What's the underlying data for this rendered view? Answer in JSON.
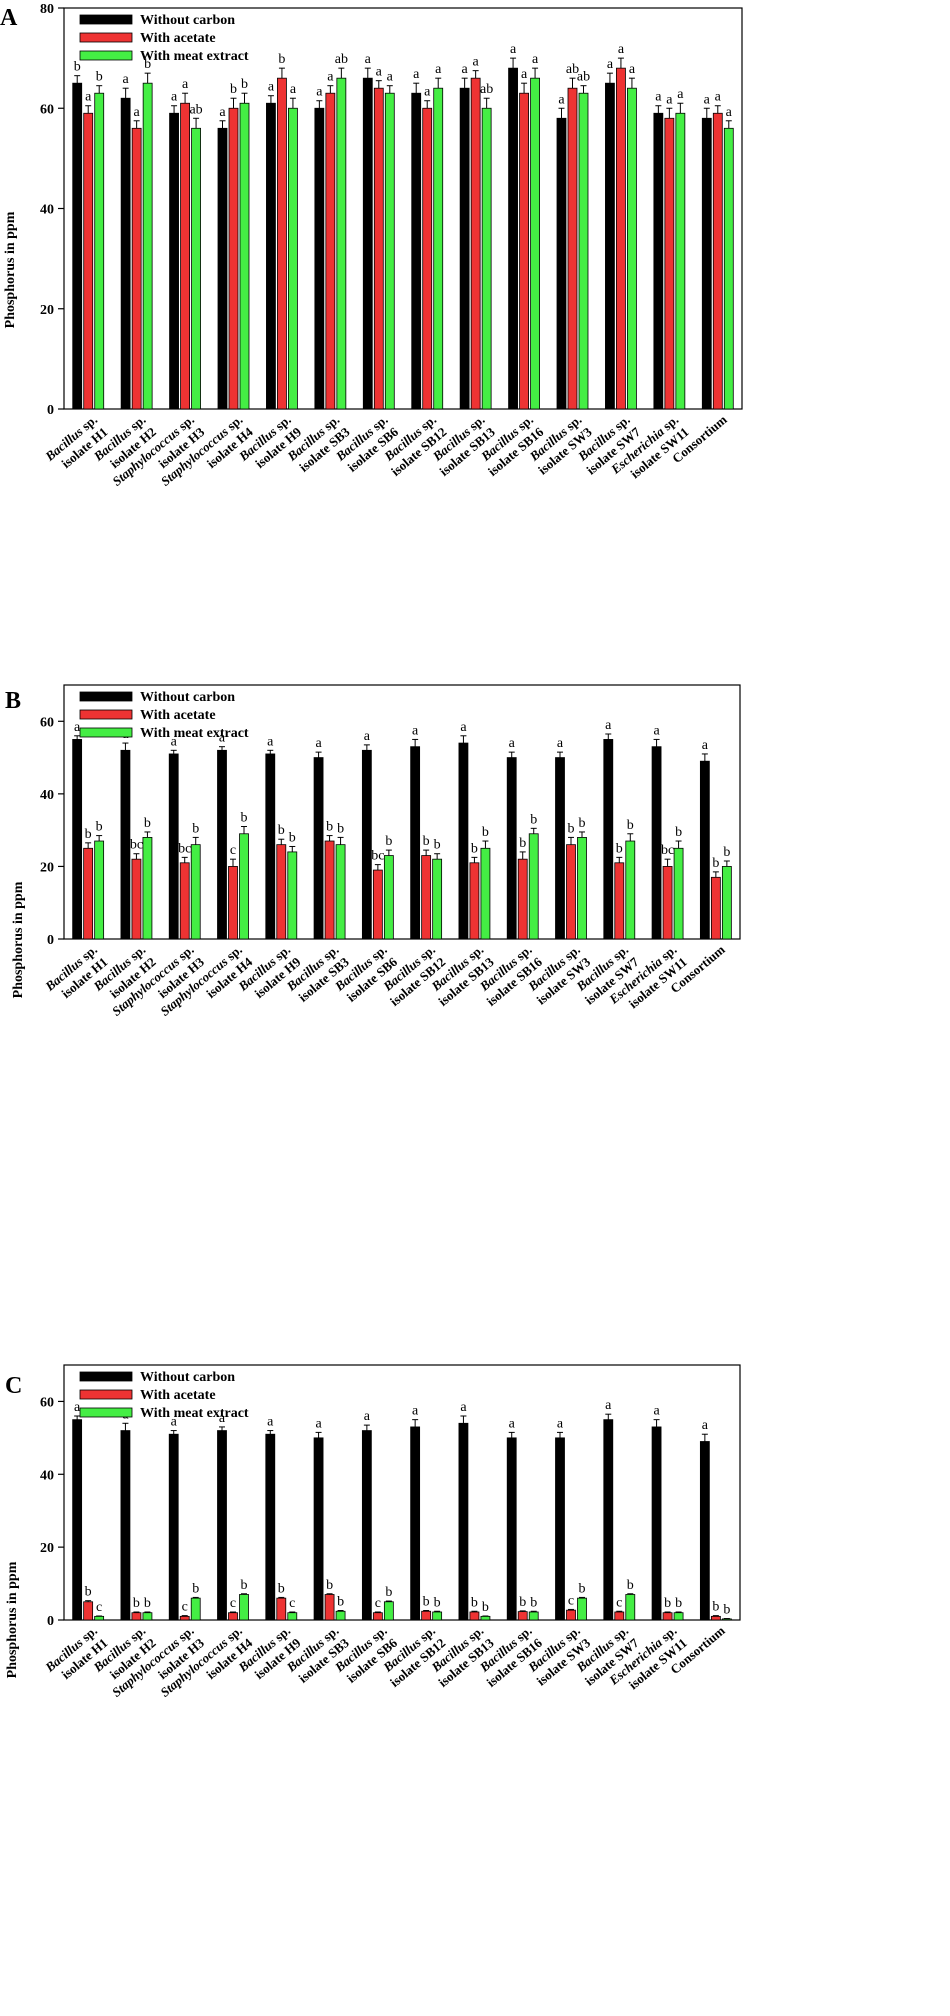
{
  "figure": {
    "panels": [
      "A",
      "B",
      "C"
    ]
  },
  "colors": {
    "without_carbon": "#000000",
    "with_acetate": "#ee3333",
    "with_meat_extract": "#44ee44"
  },
  "chart_data": [
    {
      "panel": "A",
      "type": "bar",
      "ylabel": "Phosphorus in ppm",
      "ylim": [
        0,
        80
      ],
      "yticks": [
        0,
        20,
        40,
        60,
        80
      ],
      "legend_position": "top-left",
      "categories": [
        {
          "genus": "Bacillus",
          "suffix": " sp.",
          "line2": "isolate H1"
        },
        {
          "genus": "Bacillus",
          "suffix": " sp.",
          "line2": "isolate H2"
        },
        {
          "genus": "Staphylococcus",
          "suffix": " sp.",
          "line2": "isolate H3"
        },
        {
          "genus": "Staphylococcus",
          "suffix": " sp.",
          "line2": "isolate H4"
        },
        {
          "genus": "Bacillus",
          "suffix": " sp.",
          "line2": "isolate H9"
        },
        {
          "genus": "Bacillus",
          "suffix": " sp.",
          "line2": "isolate SB3"
        },
        {
          "genus": "Bacillus",
          "suffix": " sp.",
          "line2": "isolate SB6"
        },
        {
          "genus": "Bacillus",
          "suffix": " sp.",
          "line2": "isolate SB12"
        },
        {
          "genus": "Bacillus",
          "suffix": " sp.",
          "line2": "isolate SB13"
        },
        {
          "genus": "Bacillus",
          "suffix": " sp.",
          "line2": "isolate SB16"
        },
        {
          "genus": "Bacillus",
          "suffix": " sp.",
          "line2": "isolate SW3"
        },
        {
          "genus": "Bacillus",
          "suffix": " sp.",
          "line2": "isolate SW7"
        },
        {
          "genus": "Escherichia",
          "suffix": " sp.",
          "line2": "isolate SW11"
        },
        {
          "genus": "",
          "suffix": "Consortium",
          "line2": ""
        }
      ],
      "series": [
        {
          "name": "Without carbon",
          "color": "#000000",
          "values": [
            65,
            62,
            59,
            56,
            61,
            60,
            66,
            63,
            64,
            68,
            58,
            65,
            59,
            58
          ],
          "errors": [
            1.5,
            2,
            1.5,
            1.5,
            1.5,
            1.5,
            2,
            2,
            2,
            2,
            2,
            2,
            1.5,
            2
          ],
          "letters": [
            "b",
            "a",
            "a",
            "a",
            "a",
            "a",
            "a",
            "a",
            "a",
            "a",
            "a",
            "a",
            "a",
            "a"
          ]
        },
        {
          "name": "With acetate",
          "color": "#ee3333",
          "values": [
            59,
            56,
            61,
            60,
            66,
            63,
            64,
            60,
            66,
            63,
            64,
            68,
            58,
            59
          ],
          "errors": [
            1.5,
            1.5,
            2,
            2,
            2,
            1.5,
            1.5,
            1.5,
            1.5,
            2,
            2,
            2,
            2,
            1.5
          ],
          "letters": [
            "a",
            "a",
            "a",
            "b",
            "b",
            "a",
            "a",
            "a",
            "a",
            "a",
            "ab",
            "a",
            "a",
            "a"
          ]
        },
        {
          "name": "With meat extract",
          "color": "#44ee44",
          "values": [
            63,
            65,
            56,
            61,
            60,
            66,
            63,
            64,
            60,
            66,
            63,
            64,
            59,
            56
          ],
          "errors": [
            1.5,
            2,
            2,
            2,
            2,
            2,
            1.5,
            2,
            2,
            2,
            1.5,
            2,
            2,
            1.5
          ],
          "letters": [
            "b",
            "b",
            "ab",
            "b",
            "a",
            "ab",
            "a",
            "a",
            "ab",
            "a",
            "ab",
            "a",
            "a",
            "a"
          ]
        }
      ]
    },
    {
      "panel": "B",
      "type": "bar",
      "ylabel": "Phosphorus in ppm",
      "ylim": [
        0,
        70
      ],
      "yticks": [
        0,
        20,
        40,
        60
      ],
      "legend_position": "top-left",
      "categories": [
        {
          "genus": "Bacillus",
          "suffix": " sp.",
          "line2": "isolate H1"
        },
        {
          "genus": "Bacillus",
          "suffix": " sp.",
          "line2": "isolate H2"
        },
        {
          "genus": "Staphylococcus",
          "suffix": " sp.",
          "line2": "isolate H3"
        },
        {
          "genus": "Staphylococcus",
          "suffix": " sp.",
          "line2": "isolate H4"
        },
        {
          "genus": "Bacillus",
          "suffix": " sp.",
          "line2": "isolate H9"
        },
        {
          "genus": "Bacillus",
          "suffix": " sp.",
          "line2": "isolate SB3"
        },
        {
          "genus": "Bacillus",
          "suffix": " sp.",
          "line2": "isolate SB6"
        },
        {
          "genus": "Bacillus",
          "suffix": " sp.",
          "line2": "isolate SB12"
        },
        {
          "genus": "Bacillus",
          "suffix": " sp.",
          "line2": "isolate SB13"
        },
        {
          "genus": "Bacillus",
          "suffix": " sp.",
          "line2": "isolate SB16"
        },
        {
          "genus": "Bacillus",
          "suffix": " sp.",
          "line2": "isolate SW3"
        },
        {
          "genus": "Bacillus",
          "suffix": " sp.",
          "line2": "isolate SW7"
        },
        {
          "genus": "Escherichia",
          "suffix": " sp.",
          "line2": "isolate SW11"
        },
        {
          "genus": "",
          "suffix": "Consortium",
          "line2": ""
        }
      ],
      "series": [
        {
          "name": "Without carbon",
          "color": "#000000",
          "values": [
            55,
            52,
            51,
            52,
            51,
            50,
            52,
            53,
            54,
            50,
            50,
            55,
            53,
            49
          ],
          "errors": [
            1,
            2,
            1,
            1,
            1,
            1.5,
            1.5,
            2,
            2,
            1.5,
            1.5,
            1.5,
            2,
            2
          ],
          "letters": [
            "a",
            "a",
            "a",
            "a",
            "a",
            "a",
            "a",
            "a",
            "a",
            "a",
            "a",
            "a",
            "a",
            "a"
          ]
        },
        {
          "name": "With acetate",
          "color": "#ee3333",
          "values": [
            25,
            22,
            21,
            20,
            26,
            27,
            19,
            23,
            21,
            22,
            26,
            21,
            20,
            17
          ],
          "errors": [
            1.5,
            1.5,
            1.5,
            2,
            1.5,
            1.5,
            1.5,
            1.5,
            1.5,
            2,
            2,
            1.5,
            2,
            1.5
          ],
          "letters": [
            "b",
            "bc",
            "bc",
            "c",
            "b",
            "b",
            "bc",
            "b",
            "b",
            "b",
            "b",
            "b",
            "bc",
            "b"
          ]
        },
        {
          "name": "With meat extract",
          "color": "#44ee44",
          "values": [
            27,
            28,
            26,
            29,
            24,
            26,
            23,
            22,
            25,
            29,
            28,
            27,
            25,
            20
          ],
          "errors": [
            1.5,
            1.5,
            2,
            2,
            1.5,
            2,
            1.5,
            1.5,
            2,
            1.5,
            1.5,
            2,
            2,
            1.5
          ],
          "letters": [
            "b",
            "b",
            "b",
            "b",
            "b",
            "b",
            "b",
            "b",
            "b",
            "b",
            "b",
            "b",
            "b",
            "b"
          ]
        }
      ]
    },
    {
      "panel": "C",
      "type": "bar",
      "ylabel": "Phosphorus in ppm",
      "ylim": [
        0,
        70
      ],
      "yticks": [
        0,
        20,
        40,
        60
      ],
      "legend_position": "top-left",
      "categories": [
        {
          "genus": "Bacillus",
          "suffix": " sp.",
          "line2": "isolate H1"
        },
        {
          "genus": "Bacillus",
          "suffix": " sp.",
          "line2": "isolate H2"
        },
        {
          "genus": "Staphylococcus",
          "suffix": " sp.",
          "line2": "isolate H3"
        },
        {
          "genus": "Staphylococcus",
          "suffix": " sp.",
          "line2": "isolate H4"
        },
        {
          "genus": "Bacillus",
          "suffix": " sp.",
          "line2": "isolate H9"
        },
        {
          "genus": "Bacillus",
          "suffix": " sp.",
          "line2": "isolate SB3"
        },
        {
          "genus": "Bacillus",
          "suffix": " sp.",
          "line2": "isolate SB6"
        },
        {
          "genus": "Bacillus",
          "suffix": " sp.",
          "line2": "isolate SB12"
        },
        {
          "genus": "Bacillus",
          "suffix": " sp.",
          "line2": "isolate SB13"
        },
        {
          "genus": "Bacillus",
          "suffix": " sp.",
          "line2": "isolate SB16"
        },
        {
          "genus": "Bacillus",
          "suffix": " sp.",
          "line2": "isolate SW3"
        },
        {
          "genus": "Bacillus",
          "suffix": " sp.",
          "line2": "isolate SW7"
        },
        {
          "genus": "Escherichia",
          "suffix": " sp.",
          "line2": "isolate SW11"
        },
        {
          "genus": "",
          "suffix": "Consortium",
          "line2": ""
        }
      ],
      "series": [
        {
          "name": "Without carbon",
          "color": "#000000",
          "values": [
            55,
            52,
            51,
            52,
            51,
            50,
            52,
            53,
            54,
            50,
            50,
            55,
            53,
            49
          ],
          "errors": [
            1,
            2,
            1,
            1,
            1,
            1.5,
            1.5,
            2,
            2,
            1.5,
            1.5,
            1.5,
            2,
            2
          ],
          "letters": [
            "a",
            "a",
            "a",
            "a",
            "a",
            "a",
            "a",
            "a",
            "a",
            "a",
            "a",
            "a",
            "a",
            "a"
          ]
        },
        {
          "name": "With acetate",
          "color": "#ee3333",
          "values": [
            5,
            2,
            1,
            2,
            6,
            7,
            2,
            2.4,
            2.2,
            2.3,
            2.7,
            2.2,
            2,
            1
          ],
          "errors": [
            0.3,
            0.2,
            0.2,
            0.2,
            0.2,
            0.2,
            0.2,
            0.2,
            0.2,
            0.2,
            0.2,
            0.2,
            0.2,
            0.2
          ],
          "letters": [
            "b",
            "b",
            "c",
            "c",
            "b",
            "b",
            "c",
            "b",
            "b",
            "b",
            "c",
            "c",
            "b",
            "b"
          ]
        },
        {
          "name": "With meat extract",
          "color": "#44ee44",
          "values": [
            1,
            2,
            6,
            7,
            2,
            2.4,
            5,
            2.2,
            1,
            2.2,
            6,
            7,
            2,
            0.3
          ],
          "errors": [
            0.1,
            0.2,
            0.2,
            0.2,
            0.2,
            0.2,
            0.2,
            0.2,
            0.1,
            0.2,
            0.2,
            0.2,
            0.2,
            0.1
          ],
          "letters": [
            "c",
            "b",
            "b",
            "b",
            "c",
            "b",
            "b",
            "b",
            "b",
            "b",
            "b",
            "b",
            "b",
            "b"
          ]
        }
      ]
    }
  ]
}
